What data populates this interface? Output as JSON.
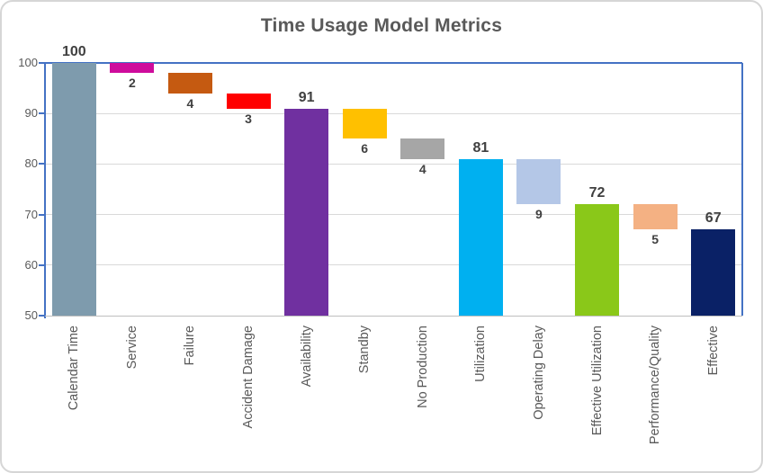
{
  "title": "Time Usage Model Metrics",
  "palette": {
    "axis_line": "#4472C4",
    "gridline": "#D9D9D9",
    "category_axis_line": "#BFBFBF",
    "title_text": "#595959",
    "tick_text": "#595959",
    "value_label_text": "#404040",
    "chart_border": "#D6D6D6",
    "background": "#FFFFFF"
  },
  "chart_data": {
    "type": "bar",
    "subtype": "waterfall",
    "title": "Time Usage Model Metrics",
    "ylim": [
      50,
      100
    ],
    "yticks": [
      50,
      60,
      70,
      80,
      90,
      100
    ],
    "grid": true,
    "legend": false,
    "categories": [
      "Calendar Time",
      "Service",
      "Failure",
      "Accident Damage",
      "Availability",
      "Standby",
      "No Production",
      "Utilization",
      "Operating Delay",
      "Effective Utilization",
      "Performance/Quality",
      "Effective"
    ],
    "bars": [
      {
        "category": "Calendar Time",
        "start": 50,
        "end": 100,
        "value": 100,
        "label": "100",
        "label_position": "above",
        "color": "#7E9BAD",
        "kind": "total"
      },
      {
        "category": "Service",
        "start": 98,
        "end": 100,
        "value": 2,
        "label": "2",
        "label_position": "below",
        "color": "#CE0C9C",
        "kind": "decrease"
      },
      {
        "category": "Failure",
        "start": 94,
        "end": 98,
        "value": 4,
        "label": "4",
        "label_position": "below",
        "color": "#C55A11",
        "kind": "decrease"
      },
      {
        "category": "Accident Damage",
        "start": 91,
        "end": 94,
        "value": 3,
        "label": "3",
        "label_position": "below",
        "color": "#FF0000",
        "kind": "decrease"
      },
      {
        "category": "Availability",
        "start": 50,
        "end": 91,
        "value": 91,
        "label": "91",
        "label_position": "above",
        "color": "#7030A0",
        "kind": "total"
      },
      {
        "category": "Standby",
        "start": 85,
        "end": 91,
        "value": 6,
        "label": "6",
        "label_position": "below",
        "color": "#FFC000",
        "kind": "decrease"
      },
      {
        "category": "No Production",
        "start": 81,
        "end": 85,
        "value": 4,
        "label": "4",
        "label_position": "below",
        "color": "#A6A6A6",
        "kind": "decrease"
      },
      {
        "category": "Utilization",
        "start": 50,
        "end": 81,
        "value": 81,
        "label": "81",
        "label_position": "above",
        "color": "#00B0F0",
        "kind": "total"
      },
      {
        "category": "Operating Delay",
        "start": 72,
        "end": 81,
        "value": 9,
        "label": "9",
        "label_position": "below",
        "color": "#B4C7E7",
        "kind": "decrease"
      },
      {
        "category": "Effective Utilization",
        "start": 50,
        "end": 72,
        "value": 72,
        "label": "72",
        "label_position": "above",
        "color": "#8AC819",
        "kind": "total"
      },
      {
        "category": "Performance/Quality",
        "start": 67,
        "end": 72,
        "value": 5,
        "label": "5",
        "label_position": "below",
        "color": "#F4B183",
        "kind": "decrease"
      },
      {
        "category": "Effective",
        "start": 50,
        "end": 67,
        "value": 67,
        "label": "67",
        "label_position": "above",
        "color": "#0A2166",
        "kind": "total"
      }
    ]
  }
}
